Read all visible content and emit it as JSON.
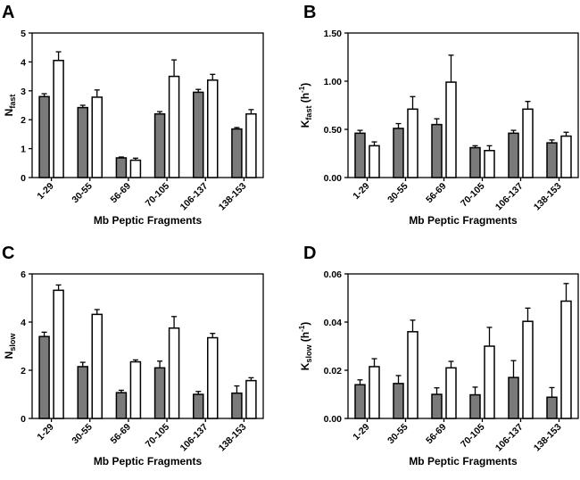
{
  "chart_data": [
    {
      "panel": "A",
      "type": "bar",
      "categories": [
        "1-29",
        "30-55",
        "56-69",
        "70-105",
        "106-137",
        "138-153"
      ],
      "xlabel": "Mb Peptic Fragments",
      "ylabel": {
        "main": "N",
        "sub": "fast",
        "rest": "",
        "sup": "",
        "tail": ""
      },
      "ylim": [
        0,
        5
      ],
      "yticks": [
        "0",
        "1",
        "2",
        "3",
        "4",
        "5"
      ],
      "ytick_values": [
        0,
        1,
        2,
        3,
        4,
        5
      ],
      "series": [
        {
          "name": "gray",
          "color": "#7a7a7a",
          "values": [
            2.8,
            2.42,
            0.68,
            2.2,
            2.95,
            1.68
          ],
          "errors": [
            0.1,
            0.08,
            0.03,
            0.08,
            0.1,
            0.05
          ]
        },
        {
          "name": "white",
          "color": "#ffffff",
          "values": [
            4.05,
            2.78,
            0.6,
            3.5,
            3.37,
            2.2
          ],
          "errors": [
            0.3,
            0.25,
            0.07,
            0.57,
            0.2,
            0.15
          ]
        }
      ]
    },
    {
      "panel": "B",
      "type": "bar",
      "categories": [
        "1-29",
        "30-55",
        "56-69",
        "70-105",
        "106-137",
        "138-153"
      ],
      "xlabel": "Mb Peptic Fragments",
      "ylabel": {
        "main": "K",
        "sub": "fast",
        "rest": " (h",
        "sup": "-1",
        "tail": ")"
      },
      "ylim": [
        0,
        1.5
      ],
      "yticks": [
        "0.00",
        "0.50",
        "1.00",
        "1.50"
      ],
      "ytick_values": [
        0,
        0.5,
        1.0,
        1.5
      ],
      "series": [
        {
          "name": "gray",
          "color": "#7a7a7a",
          "values": [
            0.46,
            0.51,
            0.55,
            0.31,
            0.46,
            0.36
          ],
          "errors": [
            0.03,
            0.05,
            0.06,
            0.02,
            0.03,
            0.03
          ]
        },
        {
          "name": "white",
          "color": "#ffffff",
          "values": [
            0.33,
            0.71,
            0.99,
            0.28,
            0.71,
            0.43
          ],
          "errors": [
            0.04,
            0.13,
            0.28,
            0.05,
            0.08,
            0.04
          ]
        }
      ]
    },
    {
      "panel": "C",
      "type": "bar",
      "categories": [
        "1-29",
        "30-55",
        "56-69",
        "70-105",
        "106-137",
        "138-153"
      ],
      "xlabel": "Mb Peptic Fragments",
      "ylabel": {
        "main": "N",
        "sub": "slow",
        "rest": "",
        "sup": "",
        "tail": ""
      },
      "ylim": [
        0,
        6
      ],
      "yticks": [
        "0",
        "2",
        "4",
        "6"
      ],
      "ytick_values": [
        0,
        2,
        4,
        6
      ],
      "series": [
        {
          "name": "gray",
          "color": "#7a7a7a",
          "values": [
            3.4,
            2.15,
            1.07,
            2.1,
            1.0,
            1.05
          ],
          "errors": [
            0.18,
            0.18,
            0.1,
            0.28,
            0.12,
            0.3
          ]
        },
        {
          "name": "white",
          "color": "#ffffff",
          "values": [
            5.32,
            4.32,
            2.35,
            3.75,
            3.35,
            1.57
          ],
          "errors": [
            0.22,
            0.2,
            0.08,
            0.48,
            0.18,
            0.12
          ]
        }
      ]
    },
    {
      "panel": "D",
      "type": "bar",
      "categories": [
        "1-29",
        "30-55",
        "56-69",
        "70-105",
        "106-137",
        "138-153"
      ],
      "xlabel": "Mb Peptic Fragments",
      "ylabel": {
        "main": "K",
        "sub": "slow",
        "rest": " (h",
        "sup": "-1",
        "tail": ")"
      },
      "ylim": [
        0,
        0.06
      ],
      "yticks": [
        "0.00",
        "0.02",
        "0.04",
        "0.06"
      ],
      "ytick_values": [
        0,
        0.02,
        0.04,
        0.06
      ],
      "series": [
        {
          "name": "gray",
          "color": "#7a7a7a",
          "values": [
            0.014,
            0.0145,
            0.01,
            0.0098,
            0.017,
            0.0088
          ],
          "errors": [
            0.002,
            0.0033,
            0.0027,
            0.0032,
            0.007,
            0.004
          ]
        },
        {
          "name": "white",
          "color": "#ffffff",
          "values": [
            0.0215,
            0.036,
            0.021,
            0.03,
            0.0403,
            0.0487
          ],
          "errors": [
            0.0033,
            0.0048,
            0.0027,
            0.0078,
            0.0055,
            0.0073
          ]
        }
      ]
    }
  ]
}
